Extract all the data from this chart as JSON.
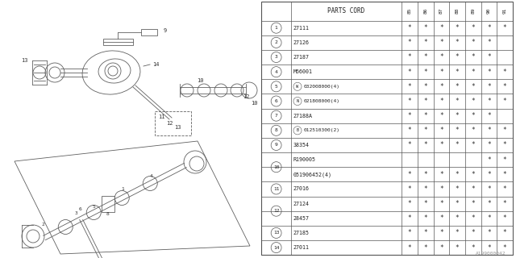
{
  "bg_color": "#ffffff",
  "header": "PARTS CORD",
  "col_headers": [
    "85",
    "86",
    "87",
    "88",
    "89",
    "90",
    "91"
  ],
  "rows": [
    {
      "num": "1",
      "label": "27111",
      "prefix": null,
      "stars": [
        1,
        1,
        1,
        1,
        1,
        1,
        1
      ],
      "group": null,
      "group_first": false
    },
    {
      "num": "2",
      "label": "27126",
      "prefix": null,
      "stars": [
        1,
        1,
        1,
        1,
        1,
        1,
        0
      ],
      "group": null,
      "group_first": false
    },
    {
      "num": "3",
      "label": "27187",
      "prefix": null,
      "stars": [
        1,
        1,
        1,
        1,
        1,
        1,
        0
      ],
      "group": null,
      "group_first": false
    },
    {
      "num": "4",
      "label": "M66001",
      "prefix": null,
      "stars": [
        1,
        1,
        1,
        1,
        1,
        1,
        1
      ],
      "group": null,
      "group_first": false
    },
    {
      "num": "5",
      "label": "032008000(4)",
      "prefix": "W",
      "stars": [
        1,
        1,
        1,
        1,
        1,
        1,
        1
      ],
      "group": null,
      "group_first": false
    },
    {
      "num": "6",
      "label": "021808000(4)",
      "prefix": "N",
      "stars": [
        1,
        1,
        1,
        1,
        1,
        1,
        1
      ],
      "group": null,
      "group_first": false
    },
    {
      "num": "7",
      "label": "27188A",
      "prefix": null,
      "stars": [
        1,
        1,
        1,
        1,
        1,
        1,
        0
      ],
      "group": null,
      "group_first": false
    },
    {
      "num": "8",
      "label": "012510300(2)",
      "prefix": "B",
      "stars": [
        1,
        1,
        1,
        1,
        1,
        1,
        1
      ],
      "group": null,
      "group_first": false
    },
    {
      "num": "9",
      "label": "38354",
      "prefix": null,
      "stars": [
        1,
        1,
        1,
        1,
        1,
        1,
        1
      ],
      "group": null,
      "group_first": false
    },
    {
      "num": "10",
      "label": "R190005",
      "prefix": null,
      "stars": [
        0,
        0,
        0,
        0,
        0,
        1,
        1
      ],
      "group": "10",
      "group_first": true
    },
    {
      "num": "10",
      "label": "051906452(4)",
      "prefix": null,
      "stars": [
        1,
        1,
        1,
        1,
        1,
        1,
        1
      ],
      "group": "10",
      "group_first": false
    },
    {
      "num": "11",
      "label": "27016",
      "prefix": null,
      "stars": [
        1,
        1,
        1,
        1,
        1,
        1,
        1
      ],
      "group": null,
      "group_first": false
    },
    {
      "num": "12",
      "label": "27124",
      "prefix": null,
      "stars": [
        1,
        1,
        1,
        1,
        1,
        1,
        1
      ],
      "group": "12",
      "group_first": true
    },
    {
      "num": "12",
      "label": "28457",
      "prefix": null,
      "stars": [
        1,
        1,
        1,
        1,
        1,
        1,
        1
      ],
      "group": "12",
      "group_first": false
    },
    {
      "num": "13",
      "label": "27185",
      "prefix": null,
      "stars": [
        1,
        1,
        1,
        1,
        1,
        1,
        1
      ],
      "group": null,
      "group_first": false
    },
    {
      "num": "14",
      "label": "27011",
      "prefix": null,
      "stars": [
        1,
        1,
        1,
        1,
        1,
        1,
        1
      ],
      "group": null,
      "group_first": false
    }
  ],
  "watermark": "A199000042",
  "lc": "#606060",
  "lw": 0.6
}
